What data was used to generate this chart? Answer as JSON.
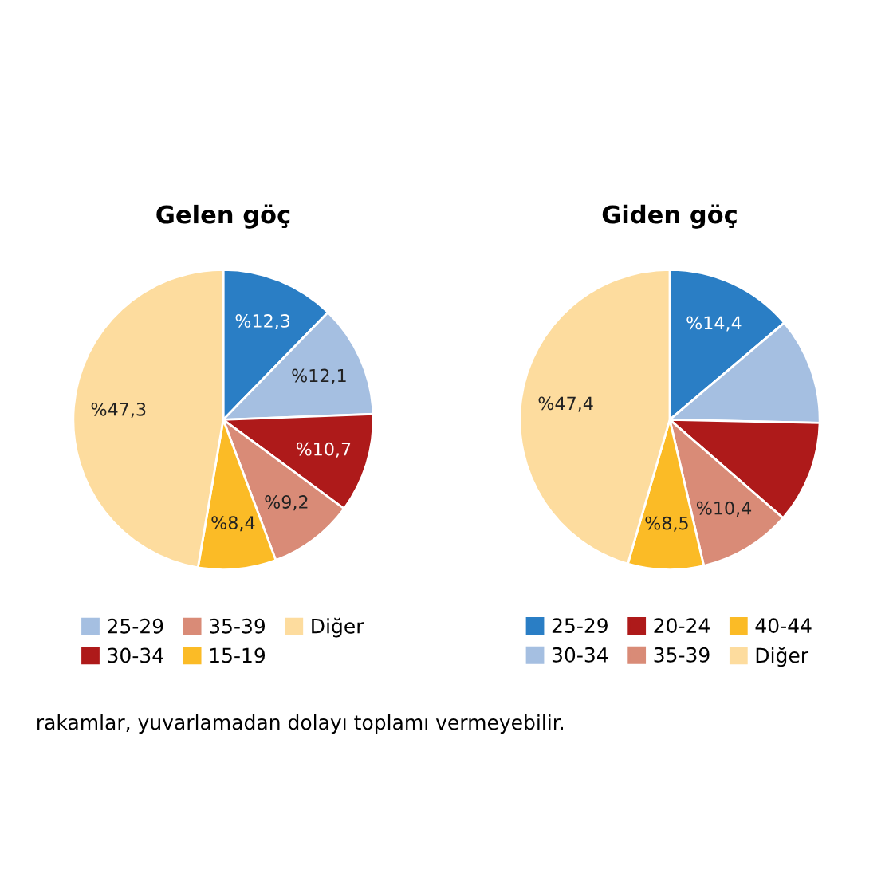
{
  "chart_data": [
    {
      "type": "pie",
      "title": "Gelen göç",
      "categories": [
        null,
        "25-29",
        "30-34",
        "35-39",
        "15-19",
        "Diğer"
      ],
      "values": [
        12.3,
        12.1,
        10.7,
        9.2,
        8.4,
        47.3
      ],
      "colors": [
        "#2a7ec5",
        "#a5bfe1",
        "#ae1a1a",
        "#d98b77",
        "#fbbb26",
        "#fddc9e"
      ],
      "value_labels": [
        "%12,3",
        "%12,1",
        "%10,7",
        "%9,2",
        "%8,4",
        "%47,3"
      ],
      "legend": "bottom",
      "annotations": [
        "rakamlar, yuvarlamadan dolayı toplamı vermeyebilir."
      ]
    },
    {
      "type": "pie",
      "title": "Giden göç",
      "categories": [
        "25-29",
        "30-34",
        "20-24",
        "35-39",
        "40-44",
        "Diğer"
      ],
      "values": [
        14.4,
        12.0,
        11.5,
        10.4,
        8.5,
        47.4
      ],
      "colors": [
        "#2a7ec5",
        "#a5bfe1",
        "#ae1a1a",
        "#d98b77",
        "#fbbb26",
        "#fddc9e"
      ],
      "value_labels": [
        "%14,4",
        null,
        null,
        "%10,4",
        "%8,5",
        "%47,4"
      ],
      "legend": "bottom"
    }
  ]
}
